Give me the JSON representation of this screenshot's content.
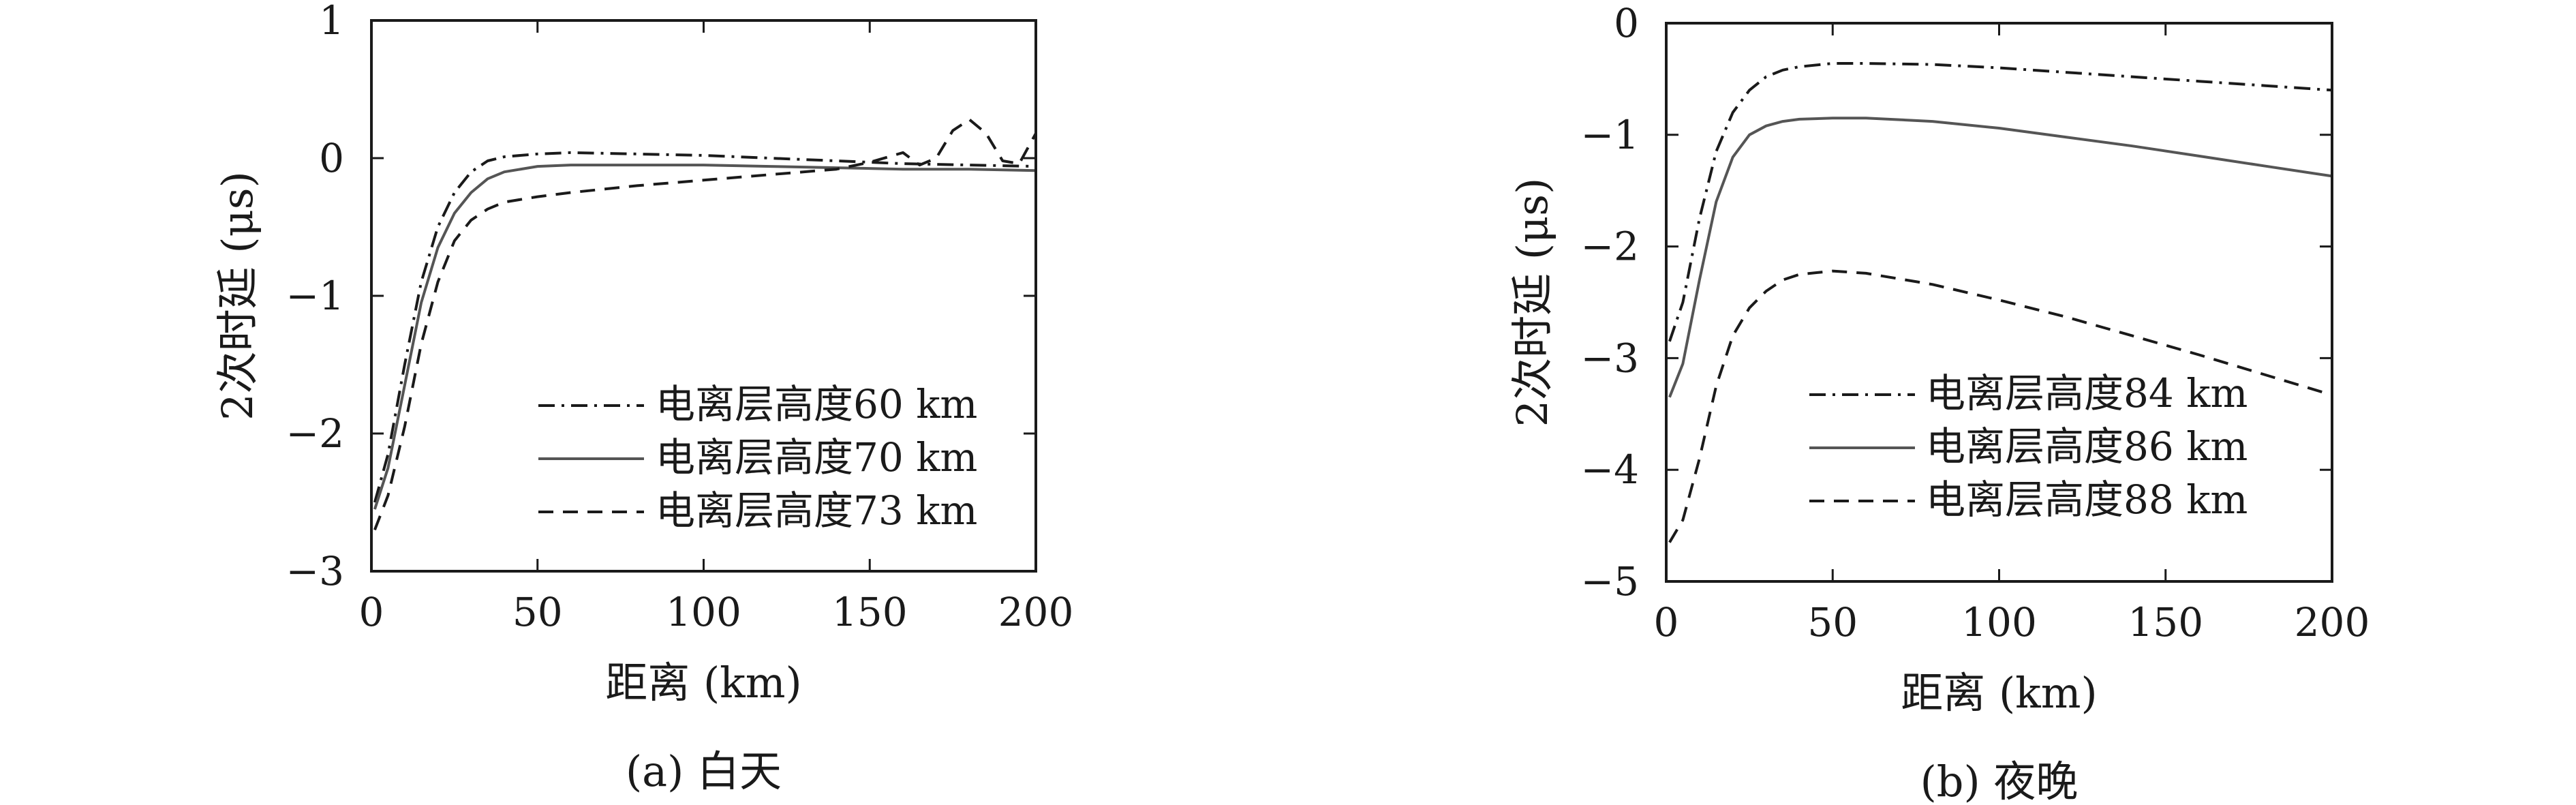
{
  "chart_data": [
    {
      "type": "line",
      "caption": "(a) 白天",
      "xlabel": "距离 (km)",
      "ylabel": "2次时延 (μs)",
      "xlim": [
        0,
        200
      ],
      "ylim": [
        -3,
        1
      ],
      "xticks": [
        0,
        50,
        100,
        150,
        200
      ],
      "xtick_labels": [
        "0",
        "50",
        "100",
        "150",
        "200"
      ],
      "yticks": [
        1,
        0,
        -1,
        -2,
        -3
      ],
      "ytick_labels": [
        "1",
        "0",
        "−1",
        "−2",
        "−3"
      ],
      "legend_position": "bottom-right",
      "series": [
        {
          "name": "电离层高度60 km",
          "style": "dashdot",
          "color": "#1a1a1a",
          "x": [
            1,
            5,
            10,
            15,
            20,
            25,
            30,
            35,
            40,
            50,
            60,
            80,
            100,
            120,
            140,
            160,
            180,
            200
          ],
          "y": [
            -2.5,
            -2.15,
            -1.5,
            -0.9,
            -0.5,
            -0.25,
            -0.1,
            -0.02,
            0.01,
            0.03,
            0.04,
            0.03,
            0.02,
            0.0,
            -0.02,
            -0.04,
            -0.05,
            -0.06
          ]
        },
        {
          "name": "电离层高度70 km",
          "style": "solid",
          "color": "#555555",
          "x": [
            1,
            5,
            10,
            15,
            20,
            25,
            30,
            35,
            40,
            50,
            60,
            80,
            100,
            120,
            140,
            160,
            180,
            200
          ],
          "y": [
            -2.55,
            -2.25,
            -1.65,
            -1.05,
            -0.65,
            -0.4,
            -0.25,
            -0.15,
            -0.1,
            -0.06,
            -0.05,
            -0.05,
            -0.05,
            -0.06,
            -0.07,
            -0.08,
            -0.08,
            -0.09
          ]
        },
        {
          "name": "电离层高度73 km",
          "style": "dashed",
          "color": "#1a1a1a",
          "x": [
            1,
            5,
            10,
            15,
            20,
            25,
            30,
            35,
            40,
            50,
            60,
            80,
            100,
            120,
            140,
            150,
            160,
            165,
            170,
            175,
            180,
            185,
            190,
            195,
            200
          ],
          "y": [
            -2.7,
            -2.45,
            -1.95,
            -1.35,
            -0.9,
            -0.6,
            -0.45,
            -0.37,
            -0.32,
            -0.28,
            -0.25,
            -0.2,
            -0.16,
            -0.12,
            -0.08,
            -0.03,
            0.04,
            -0.05,
            0.0,
            0.2,
            0.28,
            0.18,
            -0.02,
            -0.04,
            0.18
          ]
        }
      ]
    },
    {
      "type": "line",
      "caption": "(b) 夜晚",
      "xlabel": "距离 (km)",
      "ylabel": "2次时延 (μs)",
      "xlim": [
        0,
        200
      ],
      "ylim": [
        -5,
        0
      ],
      "xticks": [
        0,
        50,
        100,
        150,
        200
      ],
      "xtick_labels": [
        "0",
        "50",
        "100",
        "150",
        "200"
      ],
      "yticks": [
        0,
        -1,
        -2,
        -3,
        -4,
        -5
      ],
      "ytick_labels": [
        "0",
        "−1",
        "−2",
        "−3",
        "−4",
        "−5"
      ],
      "legend_position": "bottom-right",
      "series": [
        {
          "name": "电离层高度84 km",
          "style": "dashdot",
          "color": "#1a1a1a",
          "x": [
            1,
            5,
            10,
            15,
            20,
            25,
            30,
            35,
            40,
            50,
            60,
            80,
            100,
            120,
            140,
            160,
            180,
            200
          ],
          "y": [
            -2.85,
            -2.5,
            -1.75,
            -1.15,
            -0.8,
            -0.6,
            -0.48,
            -0.42,
            -0.39,
            -0.36,
            -0.36,
            -0.37,
            -0.4,
            -0.44,
            -0.48,
            -0.52,
            -0.56,
            -0.6
          ]
        },
        {
          "name": "电离层高度86 km",
          "style": "solid",
          "color": "#555555",
          "x": [
            1,
            5,
            10,
            15,
            20,
            25,
            30,
            35,
            40,
            50,
            60,
            80,
            100,
            120,
            140,
            160,
            180,
            200
          ],
          "y": [
            -3.35,
            -3.05,
            -2.3,
            -1.6,
            -1.2,
            -1.0,
            -0.92,
            -0.88,
            -0.86,
            -0.85,
            -0.85,
            -0.88,
            -0.94,
            -1.02,
            -1.1,
            -1.19,
            -1.28,
            -1.37
          ]
        },
        {
          "name": "电离层高度88 km",
          "style": "dashed",
          "color": "#1a1a1a",
          "x": [
            1,
            5,
            10,
            15,
            20,
            25,
            30,
            35,
            40,
            50,
            60,
            80,
            100,
            120,
            140,
            160,
            180,
            200
          ],
          "y": [
            -4.65,
            -4.45,
            -3.9,
            -3.25,
            -2.8,
            -2.55,
            -2.4,
            -2.3,
            -2.25,
            -2.22,
            -2.24,
            -2.34,
            -2.48,
            -2.63,
            -2.8,
            -2.97,
            -3.15,
            -3.33
          ]
        }
      ]
    }
  ]
}
